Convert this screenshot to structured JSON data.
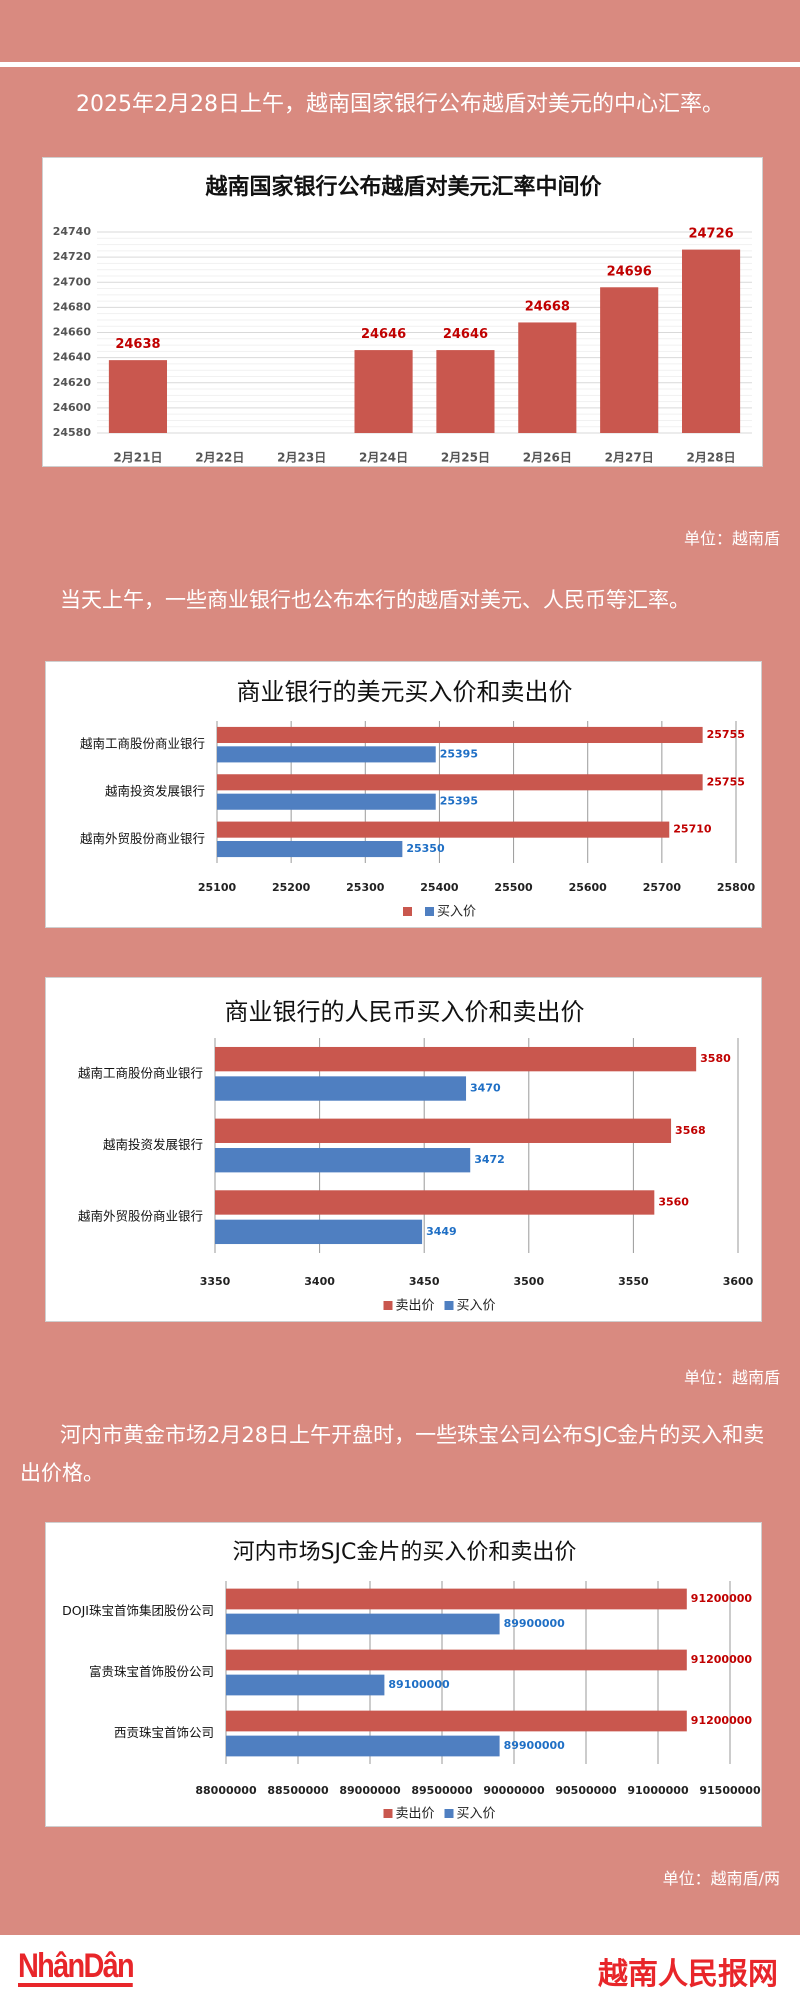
{
  "texts": {
    "intro1": "2025年2月28日上午，越南国家银行公布越盾对美元的中心汇率。",
    "intro2": "当天上午，一些商业银行也公布本行的越盾对美元、人民币等汇率。",
    "intro3": "河内市黄金市场2月28日上午开盘时，一些珠宝公司公布SJC金片的买入和卖出价格。",
    "unit1": "单位：越南盾",
    "unit2": "单位：越南盾",
    "unit3": "单位：越南盾/两"
  },
  "footer": {
    "logo": "NhânDân",
    "site": "越南人民报网"
  },
  "colors": {
    "background": "#d98a80",
    "sell": "#c9574e",
    "buy": "#4f7fc1",
    "sell_label": "#c00000",
    "buy_label": "#1f6fc5"
  },
  "chart_data": [
    {
      "type": "bar",
      "title": "越南国家银行公布越盾对美元汇率中间价",
      "categories": [
        "2月21日",
        "2月22日",
        "2月23日",
        "2月24日",
        "2月25日",
        "2月26日",
        "2月27日",
        "2月28日"
      ],
      "values": [
        24638,
        null,
        null,
        24646,
        24646,
        24668,
        24696,
        24726
      ],
      "ylim": [
        24580,
        24740
      ],
      "yticks": [
        24580,
        24600,
        24620,
        24640,
        24660,
        24680,
        24700,
        24720,
        24740
      ],
      "grid": true,
      "xlabel": "",
      "ylabel": ""
    },
    {
      "type": "hbar",
      "title": "商业银行的美元买入价和卖出价",
      "categories": [
        "越南工商股份商业银行",
        "越南投资发展银行",
        "越南外贸股份商业银行"
      ],
      "series": [
        {
          "name": "",
          "role": "sell",
          "values": [
            25755,
            25755,
            25710
          ]
        },
        {
          "name": "买入价",
          "role": "buy",
          "values": [
            25395,
            25395,
            25350
          ]
        }
      ],
      "xlim": [
        25100,
        25800
      ],
      "xticks": [
        25100,
        25200,
        25300,
        25400,
        25500,
        25600,
        25700,
        25800
      ],
      "grid": true,
      "legend": "bottom"
    },
    {
      "type": "hbar",
      "title": "商业银行的人民币买入价和卖出价",
      "categories": [
        "越南工商股份商业银行",
        "越南投资发展银行",
        "越南外贸股份商业银行"
      ],
      "series": [
        {
          "name": "卖出价",
          "role": "sell",
          "values": [
            3580,
            3568,
            3560
          ]
        },
        {
          "name": "买入价",
          "role": "buy",
          "values": [
            3470,
            3472,
            3449
          ]
        }
      ],
      "xlim": [
        3350,
        3600
      ],
      "xticks": [
        3350,
        3400,
        3450,
        3500,
        3550,
        3600
      ],
      "grid": true,
      "legend": "bottom"
    },
    {
      "type": "hbar",
      "title": "河内市场SJC金片的买入价和卖出价",
      "categories": [
        "DOJI珠宝首饰集团股份公司",
        "富贵珠宝首饰股份公司",
        "西贡珠宝首饰公司"
      ],
      "series": [
        {
          "name": "卖出价",
          "role": "sell",
          "values": [
            91200000,
            91200000,
            91200000
          ]
        },
        {
          "name": "买入价",
          "role": "buy",
          "values": [
            89900000,
            89100000,
            89900000
          ]
        }
      ],
      "xlim": [
        88000000,
        91500000
      ],
      "xticks": [
        88000000,
        88500000,
        89000000,
        89500000,
        90000000,
        90500000,
        91000000,
        91500000
      ],
      "grid": true,
      "legend": "bottom"
    }
  ]
}
